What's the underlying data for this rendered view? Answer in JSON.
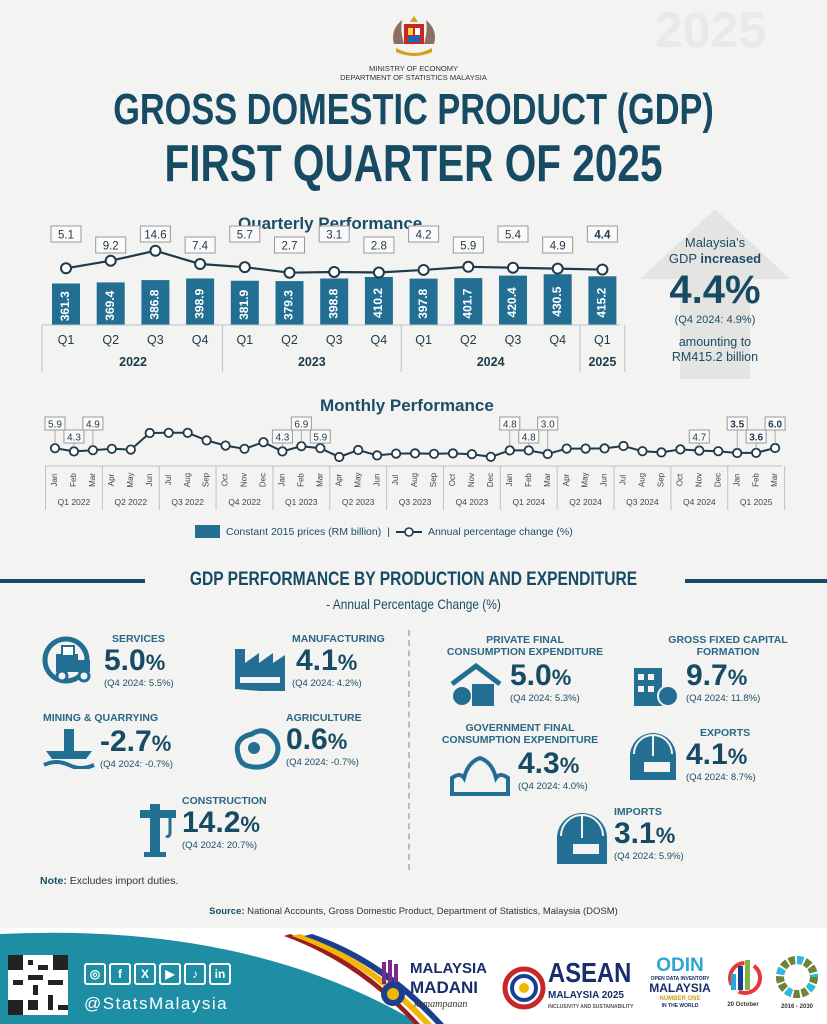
{
  "header": {
    "ministry_line1": "MINISTRY OF ECONOMY",
    "ministry_line2": "DEPARTMENT OF STATISTICS MALAYSIA",
    "title_line1": "GROSS DOMESTIC PRODUCT (GDP)",
    "title_line2": "FIRST QUARTER OF 2025",
    "watermark": "2025"
  },
  "colors": {
    "primary": "#174a63",
    "bar": "#236f93",
    "background": "#f3f3f2",
    "footer_teal": "#1d8ea3"
  },
  "chart_data": [
    {
      "type": "bar",
      "title": "Quarterly Performance",
      "categories": [
        "Q1",
        "Q2",
        "Q3",
        "Q4",
        "Q1",
        "Q2",
        "Q3",
        "Q4",
        "Q1",
        "Q2",
        "Q3",
        "Q4",
        "Q1"
      ],
      "groups": [
        {
          "label": "2022",
          "count": 4
        },
        {
          "label": "2023",
          "count": 4
        },
        {
          "label": "2024",
          "count": 4
        },
        {
          "label": "2025",
          "count": 1
        }
      ],
      "series": [
        {
          "name": "Constant 2015 prices (RM billion)",
          "type": "bar",
          "values": [
            361.3,
            369.4,
            386.8,
            398.9,
            381.9,
            379.3,
            398.8,
            410.2,
            397.8,
            401.7,
            420.4,
            430.5,
            415.2
          ]
        },
        {
          "name": "Annual percentage change (%)",
          "type": "line",
          "values": [
            5.1,
            9.2,
            14.6,
            7.4,
            5.7,
            2.7,
            3.1,
            2.8,
            4.2,
            5.9,
            5.4,
            4.9,
            4.4
          ]
        }
      ]
    },
    {
      "type": "line",
      "title": "Monthly Performance",
      "categories": [
        "Jan",
        "Feb",
        "Mar",
        "Apr",
        "May",
        "Jun",
        "Jul",
        "Aug",
        "Sep",
        "Oct",
        "Nov",
        "Dec",
        "Jan",
        "Feb",
        "Mar",
        "Apr",
        "May",
        "Jun",
        "Jul",
        "Aug",
        "Sep",
        "Oct",
        "Nov",
        "Dec",
        "Jan",
        "Feb",
        "Mar",
        "Apr",
        "May",
        "Jun",
        "Jul",
        "Aug",
        "Sep",
        "Oct",
        "Nov",
        "Dec",
        "Jan",
        "Feb",
        "Mar"
      ],
      "groups": [
        "Q1 2022",
        "Q2 2022",
        "Q3 2022",
        "Q4 2022",
        "Q1 2023",
        "Q2 2023",
        "Q3 2023",
        "Q4 2023",
        "Q1 2024",
        "Q2 2024",
        "Q3 2024",
        "Q4 2024",
        "Q1 2025"
      ],
      "series": [
        {
          "name": "Annual percentage change (%)",
          "values": [
            5.9,
            4.3,
            4.9,
            5.6,
            5.2,
            13.5,
            13.6,
            13.6,
            9.8,
            7.2,
            5.6,
            8.9,
            4.3,
            6.9,
            5.9,
            1.5,
            5.0,
            2.3,
            3.2,
            3.3,
            3.1,
            3.3,
            2.9,
            1.6,
            4.8,
            4.8,
            3.0,
            5.7,
            5.7,
            5.8,
            7.0,
            4.4,
            3.8,
            5.3,
            4.7,
            4.4,
            3.5,
            3.6,
            6.0
          ]
        }
      ],
      "labeled_points": [
        0,
        1,
        2,
        12,
        13,
        14,
        24,
        25,
        26,
        34,
        36,
        37,
        38
      ],
      "labels": [
        "5.9",
        "4.3",
        "4.9",
        "4.3",
        "6.9",
        "5.9",
        "4.8",
        "4.8",
        "3.0",
        "4.7",
        "3.5",
        "3.6",
        "6.0"
      ]
    }
  ],
  "highlight": {
    "line1": "Malaysia's",
    "line2_pre": "GDP ",
    "line2_bold": "increased",
    "value": "4.4%",
    "previous": "(Q4 2024: 4.9%)",
    "amount_line1": "amounting to",
    "amount_line2": "RM415.2 billion"
  },
  "legend": {
    "bar_label": "Constant 2015 prices (RM billion)",
    "separator": "|",
    "line_label": "Annual percentage change (%)"
  },
  "section2": {
    "title": "GDP PERFORMANCE BY PRODUCTION AND EXPENDITURE",
    "subtitle": "- Annual Percentage Change (%)",
    "production": [
      {
        "label": "SERVICES",
        "value": "5.0",
        "unit": "%",
        "previous": "(Q4 2024: 5.5%)",
        "icon": "delivery-truck-icon"
      },
      {
        "label": "MANUFACTURING",
        "value": "4.1",
        "unit": "%",
        "previous": "(Q4 2024: 4.2%)",
        "icon": "factory-icon"
      },
      {
        "label": "MINING & QUARRYING",
        "value": "-2.7",
        "unit": "%",
        "previous": "(Q4 2024: -0.7%)",
        "icon": "oil-rig-icon"
      },
      {
        "label": "AGRICULTURE",
        "value": "0.6",
        "unit": "%",
        "previous": "(Q4 2024: -0.7%)",
        "icon": "chicken-icon"
      },
      {
        "label": "CONSTRUCTION",
        "value": "14.2",
        "unit": "%",
        "previous": "(Q4 2024: 20.7%)",
        "icon": "crane-icon"
      }
    ],
    "expenditure": [
      {
        "label1": "PRIVATE FINAL",
        "label2": "CONSUMPTION EXPENDITURE",
        "value": "5.0",
        "unit": "%",
        "previous": "(Q4 2024: 5.3%)",
        "icon": "house-calculator-icon"
      },
      {
        "label1": "GROSS FIXED CAPITAL",
        "label2": "FORMATION",
        "value": "9.7",
        "unit": "%",
        "previous": "(Q4 2024: 11.8%)",
        "icon": "building-coins-icon"
      },
      {
        "label1": "GOVERNMENT FINAL",
        "label2": "CONSUMPTION EXPENDITURE",
        "value": "4.3",
        "unit": "%",
        "previous": "(Q4 2024: 4.0%)",
        "icon": "government-building-icon"
      },
      {
        "label1": "EXPORTS",
        "label2": "",
        "value": "4.1",
        "unit": "%",
        "previous": "(Q4 2024: 8.7%)",
        "icon": "globe-truck-export-icon"
      },
      {
        "label1": "IMPORTS",
        "label2": "",
        "value": "3.1",
        "unit": "%",
        "previous": "(Q4 2024: 5.9%)",
        "icon": "globe-truck-import-icon"
      }
    ],
    "note_label": "Note:",
    "note_text": " Excludes import duties."
  },
  "source": {
    "label": "Source:",
    "text": " National Accounts, Gross Domestic Product, Department of Statistics, Malaysia (DOSM)"
  },
  "footer": {
    "social_icons": [
      "instagram-icon",
      "facebook-icon",
      "x-icon",
      "youtube-icon",
      "tiktok-icon",
      "linkedin-icon"
    ],
    "social_glyphs": [
      "◎",
      "f",
      "X",
      "▶",
      "♪",
      "in"
    ],
    "handle": "@StatsMalaysia",
    "logos": {
      "madani_1": "MALAYSIA",
      "madani_2": "MADANI",
      "madani_3": "kemampanan",
      "asean_1": "ASEAN",
      "asean_2": "MALAYSIA 2025",
      "asean_3": "INCLUSIVITY AND SUSTAINABILITY",
      "odin_1": "ODIN",
      "odin_2": "OPEN DATA INVENTORY",
      "odin_3": "MALAYSIA",
      "odin_4": "NUMBER ONE",
      "odin_5": "IN THE WORLD",
      "stats_day": "20 October",
      "sdg": "2016 - 2030"
    }
  }
}
